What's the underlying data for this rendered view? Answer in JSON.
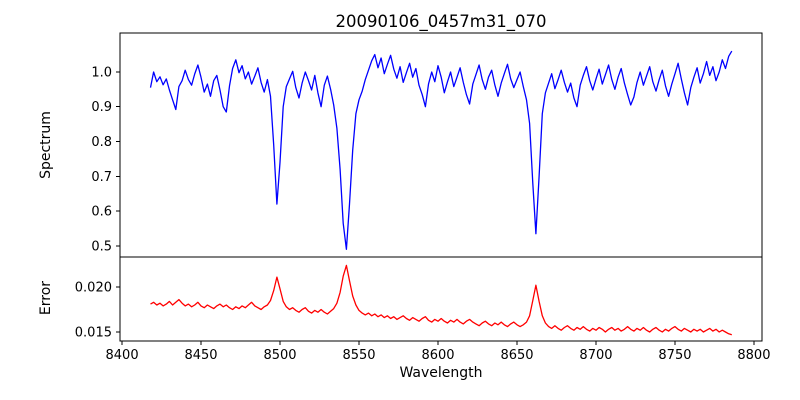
{
  "title": "20090106_0457m31_070",
  "colors": {
    "background": "#ffffff",
    "axes": "#000000",
    "spectrum_line": "#0000ff",
    "error_line": "#ff0000"
  },
  "xaxis": {
    "label": "Wavelength",
    "xlim": [
      8398.7,
      8805.1
    ],
    "tick_values": [
      8400,
      8450,
      8500,
      8550,
      8600,
      8650,
      8700,
      8750,
      8800
    ],
    "tick_labels": [
      "8400",
      "8450",
      "8500",
      "8550",
      "8600",
      "8650",
      "8700",
      "8750",
      "8800"
    ]
  },
  "chart_data": [
    {
      "type": "line",
      "name": "spectrum",
      "color": "#0000ff",
      "ylabel": "Spectrum",
      "ylim": [
        0.468,
        1.112
      ],
      "ytick_values": [
        0.5,
        0.6,
        0.7,
        0.8,
        0.9,
        1.0
      ],
      "ytick_labels": [
        "0.5",
        "0.6",
        "0.7",
        "0.8",
        "0.9",
        "1.0"
      ],
      "absorption_lines": [
        8498,
        8542,
        8662
      ],
      "x_start": 8418,
      "x_step": 2,
      "y": [
        0.955,
        1.0,
        0.972,
        0.986,
        0.963,
        0.98,
        0.948,
        0.92,
        0.892,
        0.958,
        0.975,
        1.005,
        0.978,
        0.962,
        0.994,
        1.02,
        0.985,
        0.942,
        0.965,
        0.93,
        0.975,
        0.99,
        0.948,
        0.9,
        0.885,
        0.96,
        1.01,
        1.035,
        0.998,
        1.018,
        0.98,
        1.0,
        0.965,
        0.988,
        1.012,
        0.97,
        0.942,
        0.978,
        0.93,
        0.79,
        0.62,
        0.74,
        0.9,
        0.958,
        0.98,
        1.002,
        0.955,
        0.925,
        0.968,
        1.0,
        0.975,
        0.948,
        0.99,
        0.94,
        0.9,
        0.962,
        0.988,
        0.95,
        0.905,
        0.838,
        0.72,
        0.565,
        0.49,
        0.62,
        0.775,
        0.88,
        0.92,
        0.945,
        0.978,
        1.005,
        1.032,
        1.05,
        1.012,
        1.04,
        0.995,
        1.022,
        1.048,
        1.008,
        0.982,
        1.015,
        0.97,
        0.998,
        1.025,
        0.985,
        1.01,
        0.962,
        0.935,
        0.9,
        0.965,
        1.0,
        0.972,
        1.018,
        0.985,
        0.94,
        0.972,
        1.0,
        0.958,
        0.985,
        1.012,
        0.97,
        0.935,
        0.908,
        0.965,
        0.992,
        1.02,
        0.978,
        0.95,
        0.985,
        1.005,
        0.962,
        0.93,
        0.968,
        0.995,
        1.022,
        0.98,
        0.955,
        0.978,
        1.0,
        0.958,
        0.92,
        0.852,
        0.68,
        0.535,
        0.7,
        0.88,
        0.94,
        0.968,
        0.995,
        0.952,
        0.978,
        1.005,
        0.97,
        0.942,
        0.968,
        0.925,
        0.9,
        0.962,
        0.99,
        1.015,
        0.975,
        0.948,
        0.98,
        1.008,
        0.965,
        0.992,
        1.02,
        0.978,
        0.95,
        0.985,
        1.01,
        0.968,
        0.935,
        0.905,
        0.928,
        0.97,
        1.0,
        0.962,
        0.988,
        1.015,
        0.972,
        0.945,
        0.978,
        1.005,
        0.96,
        0.93,
        0.965,
        0.995,
        1.025,
        0.98,
        0.94,
        0.905,
        0.955,
        0.985,
        1.012,
        0.968,
        0.995,
        1.03,
        0.99,
        1.015,
        0.975,
        1.0,
        1.035,
        1.01,
        1.045,
        1.06
      ]
    },
    {
      "type": "line",
      "name": "error",
      "color": "#ff0000",
      "ylabel": "Error",
      "ylim": [
        0.014,
        0.02333
      ],
      "ytick_values": [
        0.015,
        0.02
      ],
      "ytick_labels": [
        "0.015",
        "0.020"
      ],
      "x_start": 8418,
      "x_step": 2,
      "y": [
        0.0181,
        0.0183,
        0.018,
        0.0182,
        0.0179,
        0.0181,
        0.0184,
        0.018,
        0.0183,
        0.0186,
        0.0182,
        0.0179,
        0.0181,
        0.0178,
        0.018,
        0.0183,
        0.0179,
        0.0177,
        0.018,
        0.0178,
        0.0176,
        0.0179,
        0.0181,
        0.0178,
        0.018,
        0.0177,
        0.0175,
        0.0178,
        0.0176,
        0.0179,
        0.0177,
        0.018,
        0.0183,
        0.0179,
        0.0177,
        0.0175,
        0.0178,
        0.018,
        0.0185,
        0.0196,
        0.0211,
        0.0198,
        0.0184,
        0.0178,
        0.0175,
        0.0177,
        0.0174,
        0.0172,
        0.0175,
        0.0177,
        0.0173,
        0.0171,
        0.0174,
        0.0172,
        0.0175,
        0.0172,
        0.017,
        0.0173,
        0.0176,
        0.0182,
        0.0194,
        0.0212,
        0.0224,
        0.0207,
        0.019,
        0.018,
        0.0174,
        0.0171,
        0.0169,
        0.0171,
        0.0168,
        0.017,
        0.0167,
        0.0169,
        0.0166,
        0.0168,
        0.0165,
        0.0167,
        0.0164,
        0.0166,
        0.0168,
        0.0165,
        0.0163,
        0.0166,
        0.0164,
        0.0162,
        0.0165,
        0.0167,
        0.0163,
        0.0161,
        0.0164,
        0.0162,
        0.0165,
        0.0162,
        0.016,
        0.0163,
        0.0161,
        0.0164,
        0.0161,
        0.0159,
        0.0162,
        0.0164,
        0.0161,
        0.0159,
        0.0157,
        0.016,
        0.0162,
        0.0159,
        0.0157,
        0.016,
        0.0158,
        0.0161,
        0.0158,
        0.0156,
        0.0159,
        0.0161,
        0.0158,
        0.0156,
        0.0158,
        0.0161,
        0.0168,
        0.0185,
        0.0202,
        0.0184,
        0.0168,
        0.016,
        0.0156,
        0.0154,
        0.0157,
        0.0154,
        0.0152,
        0.0155,
        0.0157,
        0.0154,
        0.0152,
        0.0155,
        0.0153,
        0.0156,
        0.0153,
        0.0151,
        0.0154,
        0.0152,
        0.0155,
        0.0153,
        0.015,
        0.0153,
        0.0155,
        0.0152,
        0.0154,
        0.0151,
        0.0153,
        0.0156,
        0.0153,
        0.0151,
        0.0154,
        0.0152,
        0.0155,
        0.0152,
        0.015,
        0.0153,
        0.0155,
        0.0152,
        0.015,
        0.0153,
        0.0151,
        0.0154,
        0.0156,
        0.0153,
        0.0151,
        0.0154,
        0.0152,
        0.015,
        0.0153,
        0.0151,
        0.0153,
        0.015,
        0.0152,
        0.0154,
        0.0151,
        0.0153,
        0.015,
        0.0152,
        0.015,
        0.0148,
        0.0147
      ]
    }
  ]
}
